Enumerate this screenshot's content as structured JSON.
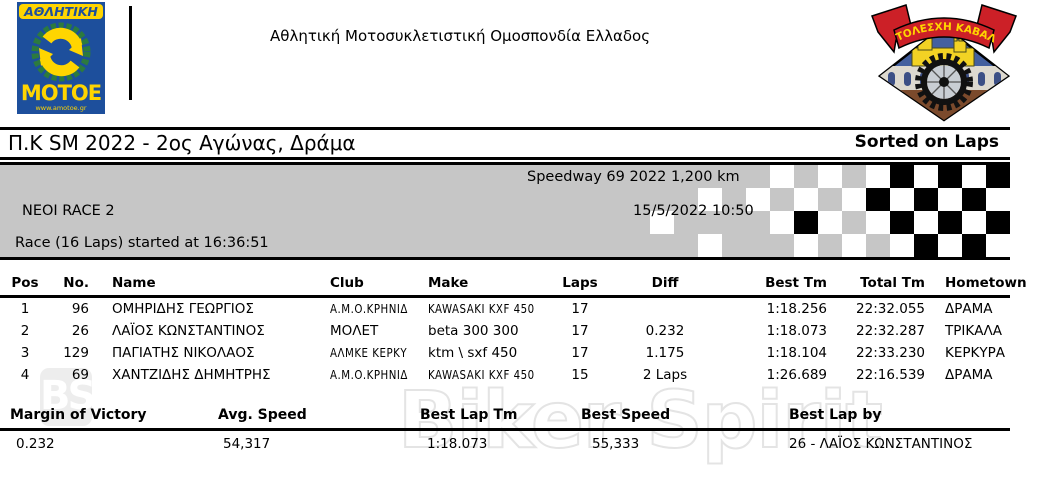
{
  "header": {
    "federation_name": "Αθλητική Μοτοσυκλετιστική Ομοσπονδία Ελλαδος",
    "left_logo": {
      "top_band": "ΑΘΛΗΤΙΚΗ",
      "bottom_text": "ΜΟΤΟΕ",
      "url_text": "www.amotoe.gr",
      "blue": "#1d4f9c",
      "yellow": "#ffd500",
      "green": "#2c7a3f"
    },
    "right_logo": {
      "ribbon_text": "ΜΟΤΟΛΕΣΧΗ ΚΑΒΑΛΑΣ",
      "red": "#cc2027"
    }
  },
  "title_bar": {
    "title": "Π.Κ SM 2022 - 2ος Αγώνας, Δράμα",
    "sort_note": "Sorted on Laps"
  },
  "banner": {
    "track_line": "Speedway 69 2022 1,200 km",
    "race_name": "ΝΕΟΙ RACE 2",
    "datetime": "15/5/2022 10:50",
    "race_info": "Race (16 Laps) started at 16:36:51",
    "bg_color": "#c6c6c6",
    "checker_rows": [
      "GGGGGGGWGWGWBWBWB",
      "GGGGWGWGWGWBWBWBW",
      "GGWGGGGWBWGWBWBWB",
      "GGGGWGGGWGWGWBWBW"
    ]
  },
  "results": {
    "columns": {
      "pos": "Pos",
      "no": "No.",
      "name": "Name",
      "club": "Club",
      "make": "Make",
      "laps": "Laps",
      "diff": "Diff",
      "best_tm": "Best Tm",
      "total_tm": "Total Tm",
      "hometown": "Hometown"
    },
    "rows": [
      {
        "pos": "1",
        "no": "96",
        "name": "ΟΜΗΡΙΔΗΣ ΓΕΩΡΓΙΟΣ",
        "club": "Α.Μ.Ο.ΚΡΗΝΙΔ",
        "make": "KAWASAKI KXF 450",
        "laps": "17",
        "diff": "",
        "best_tm": "1:18.256",
        "total_tm": "22:32.055",
        "hometown": "ΔΡΑΜΑ"
      },
      {
        "pos": "2",
        "no": "26",
        "name": "ΛΑΪΟΣ ΚΩΝΣΤΑΝΤΙΝΟΣ",
        "club": "ΜΟΛΕΤ",
        "make": "beta 300 300",
        "laps": "17",
        "diff": "0.232",
        "best_tm": "1:18.073",
        "total_tm": "22:32.287",
        "hometown": "ΤΡΙΚΑΛΑ"
      },
      {
        "pos": "3",
        "no": "129",
        "name": "ΠΑΓΙΑΤΗΣ ΝΙΚΟΛΑΟΣ",
        "club": "ΑΛΜΚΕ ΚΕΡΚΥ",
        "make": "ktm \\ sxf 450",
        "laps": "17",
        "diff": "1.175",
        "best_tm": "1:18.104",
        "total_tm": "22:33.230",
        "hometown": "ΚΕΡΚΥΡΑ"
      },
      {
        "pos": "4",
        "no": "69",
        "name": "ΧΑΝΤΖΙΔΗΣ ΔΗΜΗΤΡΗΣ",
        "club": "Α.Μ.Ο.ΚΡΗΝΙΔ",
        "make": "KAWASAKI KXF 450",
        "laps": "15",
        "diff": "2 Laps",
        "best_tm": "1:26.689",
        "total_tm": "22:16.539",
        "hometown": "ΔΡΑΜΑ"
      }
    ]
  },
  "stats": {
    "items": [
      {
        "label": "Margin of Victory",
        "value": "0.232"
      },
      {
        "label": "Avg. Speed",
        "value": "54,317"
      },
      {
        "label": "Best Lap Tm",
        "value": "1:18.073"
      },
      {
        "label": "Best Speed",
        "value": "55,333"
      },
      {
        "label": "Best Lap by",
        "value": "26 - ΛΑΪΟΣ ΚΩΝΣΤΑΝΤΙΝΟΣ"
      }
    ]
  },
  "watermark": {
    "badge": "BS",
    "text": "Biker Spirit"
  }
}
